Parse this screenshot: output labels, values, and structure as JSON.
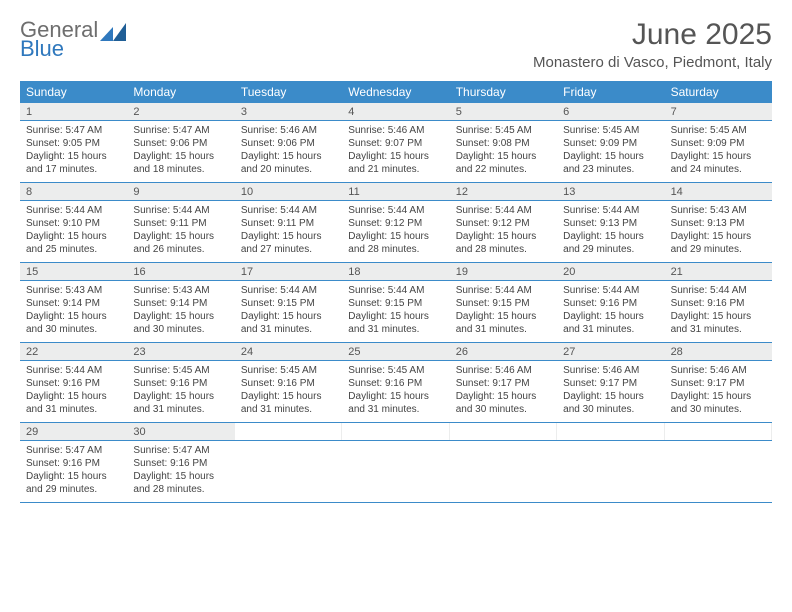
{
  "logo": {
    "text1": "General",
    "text2": "Blue"
  },
  "title": "June 2025",
  "subtitle": "Monastero di Vasco, Piedmont, Italy",
  "colors": {
    "header_bg": "#3b8bc9",
    "header_fg": "#ffffff",
    "numrow_bg": "#eceded",
    "border": "#3b8bc9",
    "title_color": "#555555",
    "logo_gray": "#6e6e6e",
    "logo_blue": "#2f78bd"
  },
  "daynames": [
    "Sunday",
    "Monday",
    "Tuesday",
    "Wednesday",
    "Thursday",
    "Friday",
    "Saturday"
  ],
  "weeks": [
    [
      {
        "n": "1",
        "sr": "5:47 AM",
        "ss": "9:05 PM",
        "dl": "15 hours and 17 minutes."
      },
      {
        "n": "2",
        "sr": "5:47 AM",
        "ss": "9:06 PM",
        "dl": "15 hours and 18 minutes."
      },
      {
        "n": "3",
        "sr": "5:46 AM",
        "ss": "9:06 PM",
        "dl": "15 hours and 20 minutes."
      },
      {
        "n": "4",
        "sr": "5:46 AM",
        "ss": "9:07 PM",
        "dl": "15 hours and 21 minutes."
      },
      {
        "n": "5",
        "sr": "5:45 AM",
        "ss": "9:08 PM",
        "dl": "15 hours and 22 minutes."
      },
      {
        "n": "6",
        "sr": "5:45 AM",
        "ss": "9:09 PM",
        "dl": "15 hours and 23 minutes."
      },
      {
        "n": "7",
        "sr": "5:45 AM",
        "ss": "9:09 PM",
        "dl": "15 hours and 24 minutes."
      }
    ],
    [
      {
        "n": "8",
        "sr": "5:44 AM",
        "ss": "9:10 PM",
        "dl": "15 hours and 25 minutes."
      },
      {
        "n": "9",
        "sr": "5:44 AM",
        "ss": "9:11 PM",
        "dl": "15 hours and 26 minutes."
      },
      {
        "n": "10",
        "sr": "5:44 AM",
        "ss": "9:11 PM",
        "dl": "15 hours and 27 minutes."
      },
      {
        "n": "11",
        "sr": "5:44 AM",
        "ss": "9:12 PM",
        "dl": "15 hours and 28 minutes."
      },
      {
        "n": "12",
        "sr": "5:44 AM",
        "ss": "9:12 PM",
        "dl": "15 hours and 28 minutes."
      },
      {
        "n": "13",
        "sr": "5:44 AM",
        "ss": "9:13 PM",
        "dl": "15 hours and 29 minutes."
      },
      {
        "n": "14",
        "sr": "5:43 AM",
        "ss": "9:13 PM",
        "dl": "15 hours and 29 minutes."
      }
    ],
    [
      {
        "n": "15",
        "sr": "5:43 AM",
        "ss": "9:14 PM",
        "dl": "15 hours and 30 minutes."
      },
      {
        "n": "16",
        "sr": "5:43 AM",
        "ss": "9:14 PM",
        "dl": "15 hours and 30 minutes."
      },
      {
        "n": "17",
        "sr": "5:44 AM",
        "ss": "9:15 PM",
        "dl": "15 hours and 31 minutes."
      },
      {
        "n": "18",
        "sr": "5:44 AM",
        "ss": "9:15 PM",
        "dl": "15 hours and 31 minutes."
      },
      {
        "n": "19",
        "sr": "5:44 AM",
        "ss": "9:15 PM",
        "dl": "15 hours and 31 minutes."
      },
      {
        "n": "20",
        "sr": "5:44 AM",
        "ss": "9:16 PM",
        "dl": "15 hours and 31 minutes."
      },
      {
        "n": "21",
        "sr": "5:44 AM",
        "ss": "9:16 PM",
        "dl": "15 hours and 31 minutes."
      }
    ],
    [
      {
        "n": "22",
        "sr": "5:44 AM",
        "ss": "9:16 PM",
        "dl": "15 hours and 31 minutes."
      },
      {
        "n": "23",
        "sr": "5:45 AM",
        "ss": "9:16 PM",
        "dl": "15 hours and 31 minutes."
      },
      {
        "n": "24",
        "sr": "5:45 AM",
        "ss": "9:16 PM",
        "dl": "15 hours and 31 minutes."
      },
      {
        "n": "25",
        "sr": "5:45 AM",
        "ss": "9:16 PM",
        "dl": "15 hours and 31 minutes."
      },
      {
        "n": "26",
        "sr": "5:46 AM",
        "ss": "9:17 PM",
        "dl": "15 hours and 30 minutes."
      },
      {
        "n": "27",
        "sr": "5:46 AM",
        "ss": "9:17 PM",
        "dl": "15 hours and 30 minutes."
      },
      {
        "n": "28",
        "sr": "5:46 AM",
        "ss": "9:17 PM",
        "dl": "15 hours and 30 minutes."
      }
    ],
    [
      {
        "n": "29",
        "sr": "5:47 AM",
        "ss": "9:16 PM",
        "dl": "15 hours and 29 minutes."
      },
      {
        "n": "30",
        "sr": "5:47 AM",
        "ss": "9:16 PM",
        "dl": "15 hours and 28 minutes."
      },
      null,
      null,
      null,
      null,
      null
    ]
  ],
  "labels": {
    "sunrise": "Sunrise:",
    "sunset": "Sunset:",
    "daylight": "Daylight:"
  }
}
